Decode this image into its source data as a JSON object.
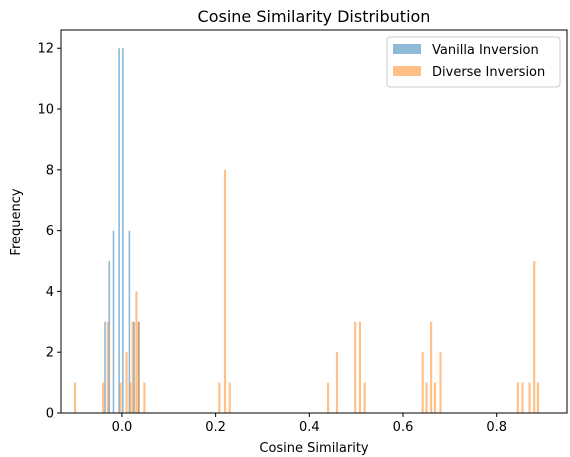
{
  "chart_data": {
    "type": "bar",
    "title": "Cosine Similarity Distribution",
    "xlabel": "Cosine Similarity",
    "ylabel": "Frequency",
    "xlim": [
      -0.13,
      0.95
    ],
    "ylim": [
      0,
      12.6
    ],
    "xticks": [
      0.0,
      0.2,
      0.4,
      0.6,
      0.8
    ],
    "xtick_labels": [
      "0.0",
      "0.2",
      "0.4",
      "0.6",
      "0.8"
    ],
    "yticks": [
      0,
      2,
      4,
      6,
      8,
      10,
      12
    ],
    "ytick_labels": [
      "0",
      "2",
      "4",
      "6",
      "8",
      "10",
      "12"
    ],
    "grid": false,
    "legend_position": "top-right",
    "series": [
      {
        "name": "Vanilla Inversion",
        "color": "#1f77b4",
        "opacity": 0.5,
        "bin_width": 0.0035,
        "bars": [
          {
            "x": -0.036,
            "y": 3
          },
          {
            "x": -0.027,
            "y": 5
          },
          {
            "x": -0.018,
            "y": 6
          },
          {
            "x": -0.006,
            "y": 12
          },
          {
            "x": 0.002,
            "y": 12
          },
          {
            "x": 0.016,
            "y": 6
          },
          {
            "x": 0.026,
            "y": 3
          },
          {
            "x": 0.036,
            "y": 3
          }
        ]
      },
      {
        "name": "Diverse Inversion",
        "color": "#ff7f0e",
        "opacity": 0.5,
        "bin_width": 0.0045,
        "bars": [
          {
            "x": -0.1,
            "y": 1
          },
          {
            "x": -0.04,
            "y": 1
          },
          {
            "x": -0.03,
            "y": 3
          },
          {
            "x": -0.003,
            "y": 1
          },
          {
            "x": 0.01,
            "y": 2
          },
          {
            "x": 0.018,
            "y": 1
          },
          {
            "x": 0.023,
            "y": 3
          },
          {
            "x": 0.031,
            "y": 4
          },
          {
            "x": 0.036,
            "y": 3
          },
          {
            "x": 0.048,
            "y": 1
          },
          {
            "x": 0.208,
            "y": 1
          },
          {
            "x": 0.22,
            "y": 8
          },
          {
            "x": 0.23,
            "y": 1
          },
          {
            "x": 0.44,
            "y": 1
          },
          {
            "x": 0.459,
            "y": 2
          },
          {
            "x": 0.498,
            "y": 3
          },
          {
            "x": 0.508,
            "y": 3
          },
          {
            "x": 0.518,
            "y": 1
          },
          {
            "x": 0.642,
            "y": 2
          },
          {
            "x": 0.65,
            "y": 1
          },
          {
            "x": 0.66,
            "y": 3
          },
          {
            "x": 0.668,
            "y": 1
          },
          {
            "x": 0.68,
            "y": 2
          },
          {
            "x": 0.845,
            "y": 1
          },
          {
            "x": 0.855,
            "y": 1
          },
          {
            "x": 0.87,
            "y": 1
          },
          {
            "x": 0.88,
            "y": 5
          },
          {
            "x": 0.888,
            "y": 1
          }
        ]
      }
    ]
  }
}
